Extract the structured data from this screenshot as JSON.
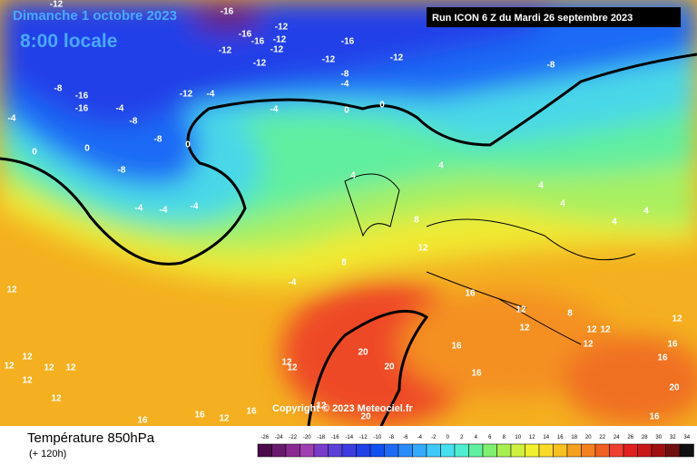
{
  "header": {
    "date": "Dimanche 1 octobre 2023",
    "time": "8:00 locale",
    "run": "Run ICON 6 Z du Mardi 26 septembre 2023"
  },
  "copyright": "Copyright © 2023 Meteociel.fr",
  "footer": {
    "title": "Température 850hPa",
    "lead": "(+ 120h)"
  },
  "colorbar": {
    "labels": [
      -26,
      -24,
      -22,
      -20,
      -18,
      -16,
      -14,
      -12,
      -10,
      -8,
      -6,
      -4,
      -2,
      0,
      2,
      4,
      6,
      8,
      10,
      12,
      14,
      16,
      18,
      20,
      22,
      24,
      26,
      28,
      30,
      32,
      34
    ],
    "colors": [
      "#4a0a4a",
      "#6a1a6e",
      "#8a2a90",
      "#a040b0",
      "#7a3cc8",
      "#5a40d8",
      "#3c3ce0",
      "#2040e8",
      "#1050f0",
      "#1f6af5",
      "#2a8cf8",
      "#36aafa",
      "#40c8fa",
      "#48e0f0",
      "#50eed0",
      "#60f0a0",
      "#80f070",
      "#a8f050",
      "#d0f040",
      "#f0f030",
      "#fada28",
      "#f8c020",
      "#f6a020",
      "#f48020",
      "#f06020",
      "#ee4030",
      "#e02020",
      "#c81818",
      "#a01010",
      "#701010",
      "#101010"
    ]
  },
  "contour_labels": [
    -12,
    -16,
    -12,
    -16,
    -16,
    -12,
    -12,
    -16,
    -12,
    -12,
    -12,
    -12,
    -8,
    -8,
    -4,
    -12,
    -4,
    -8,
    -16,
    -16,
    -4,
    -8,
    -4,
    0,
    0,
    -4,
    -8,
    0,
    0,
    0,
    -8,
    -4,
    -4,
    -4,
    4,
    4,
    4,
    4,
    4,
    4,
    8,
    8,
    -4,
    12,
    12,
    16,
    12,
    12,
    8,
    12,
    12,
    12,
    12,
    16,
    16,
    16,
    12,
    12,
    12,
    12,
    12,
    12,
    12,
    12,
    20,
    20,
    16,
    12,
    16,
    16,
    12,
    16,
    16,
    20,
    20
  ]
}
